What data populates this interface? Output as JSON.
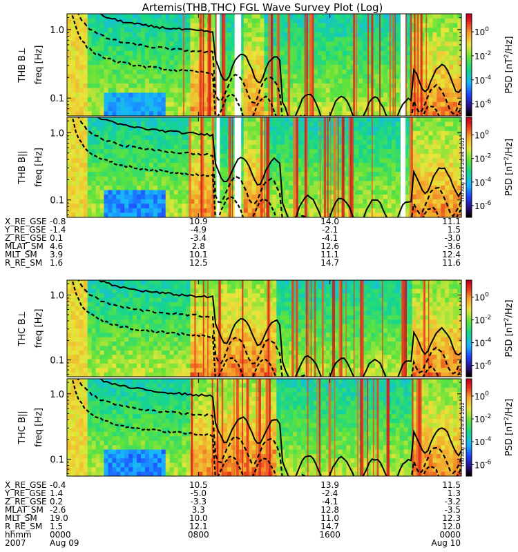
{
  "title": "Artemis(THB,THC) FGL Wave Survey Plot (Log)",
  "colorbar": {
    "label_prefix": "PSD [nT",
    "label_suffix": "/Hz]",
    "ticks": [
      {
        "base": "10",
        "exp": "0",
        "log": 0
      },
      {
        "base": "10",
        "exp": "-2",
        "log": -2
      },
      {
        "base": "10",
        "exp": "-4",
        "log": -4
      },
      {
        "base": "10",
        "exp": "-6",
        "log": -6
      }
    ],
    "range_log": [
      -7,
      1.5
    ]
  },
  "freq_axis": {
    "label": "freq [Hz]",
    "ticks": [
      "1.0",
      "0.1"
    ],
    "tick_values": [
      1.0,
      0.1
    ],
    "range": [
      0.055,
      1.7
    ],
    "scale": "log"
  },
  "panels": [
    {
      "probe": "THB",
      "component": "B⊥",
      "group": 0
    },
    {
      "probe": "THB",
      "component": "B||",
      "group": 0
    },
    {
      "probe": "THC",
      "component": "B⊥",
      "group": 1
    },
    {
      "probe": "THC",
      "component": "B||",
      "group": 1
    }
  ],
  "stamps": [
    "Thu Aug 30 23:24:34 2012",
    "Thu Aug 30 23:24:33 2012"
  ],
  "ephemeris": [
    {
      "rows": [
        {
          "label": "X_RE_GSE",
          "values": [
            "-0.8",
            "10.9",
            "14.0",
            "11.1"
          ]
        },
        {
          "label": "Y_RE_GSE",
          "values": [
            "-1.4",
            "-4.9",
            "-2.1",
            "1.5"
          ]
        },
        {
          "label": "Z_RE_GSE",
          "values": [
            "0.1",
            "-3.4",
            "-4.1",
            "-3.0"
          ]
        },
        {
          "label": "MLAT_SM",
          "values": [
            "4.6",
            "2.8",
            "12.6",
            "-3.6"
          ]
        },
        {
          "label": "MLT_SM",
          "values": [
            "3.9",
            "10.1",
            "11.1",
            "12.4"
          ]
        },
        {
          "label": "R_RE_SM",
          "values": [
            "1.6",
            "12.5",
            "14.7",
            "11.6"
          ]
        }
      ]
    },
    {
      "rows": [
        {
          "label": "X_RE_GSE",
          "values": [
            "-0.4",
            "10.5",
            "13.9",
            "11.5"
          ]
        },
        {
          "label": "Y_RE_GSE",
          "values": [
            "1.4",
            "-5.0",
            "-2.4",
            "1.3"
          ]
        },
        {
          "label": "Z_RE_GSE",
          "values": [
            "0.2",
            "-3.3",
            "-4.1",
            "-3.2"
          ]
        },
        {
          "label": "MLAT_SM",
          "values": [
            "-2.6",
            "3.3",
            "12.8",
            "-3.5"
          ]
        },
        {
          "label": "MLT_SM",
          "values": [
            "19.0",
            "10.0",
            "11.0",
            "12.3"
          ]
        },
        {
          "label": "R_RE_SM",
          "values": [
            "1.5",
            "12.1",
            "14.7",
            "12.0"
          ]
        },
        {
          "label": "hhmm",
          "values": [
            "0000",
            "0800",
            "1600",
            "0000"
          ]
        }
      ]
    }
  ],
  "date_row": {
    "year": "2007",
    "start": "Aug 09",
    "end": "Aug 10"
  },
  "chart_data": {
    "type": "heatmap",
    "title": "Artemis(THB,THC) FGL Wave Survey Plot (Log)",
    "xlabel": "hhmm",
    "ylabel": "freq [Hz]",
    "x_ticks": [
      "0000",
      "0800",
      "1600",
      "0000"
    ],
    "x_tick_hours": [
      0,
      8,
      16,
      24
    ],
    "x_range_hours": [
      0,
      24
    ],
    "y_range_hz": [
      0.055,
      1.7
    ],
    "y_scale": "log",
    "colorscale": "rainbow",
    "z_range_log10": [
      -7,
      1.5
    ],
    "series": [
      {
        "name": "THB B⊥",
        "data_gaps_hours": [
          [
            9.1,
            9.3
          ],
          [
            10.2,
            10.6
          ],
          [
            20.3,
            20.6
          ]
        ]
      },
      {
        "name": "THB B||",
        "data_gaps_hours": [
          [
            9.1,
            9.3
          ],
          [
            10.2,
            10.6
          ],
          [
            20.3,
            20.6
          ]
        ]
      },
      {
        "name": "THC B⊥",
        "data_gaps_hours": []
      },
      {
        "name": "THC B||",
        "data_gaps_hours": []
      }
    ]
  }
}
